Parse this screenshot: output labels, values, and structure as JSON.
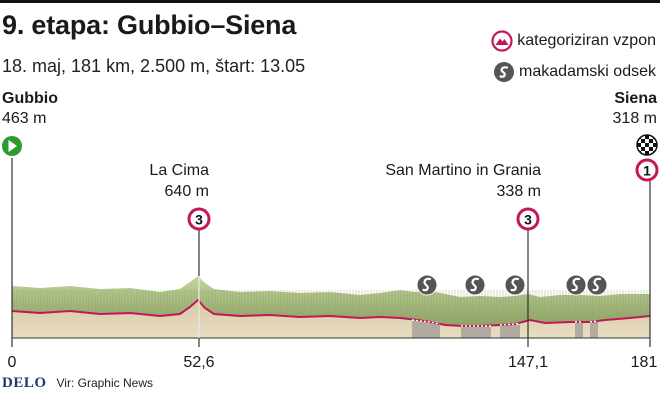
{
  "header": {
    "title": "9. etapa: Gubbio–Siena",
    "subtitle": "18. maj, 181 km, 2.500 m, štart: 13.05"
  },
  "legend": {
    "climb_label": "kategoriziran vzpon",
    "gravel_label": "makadamski odsek"
  },
  "start": {
    "name": "Gubbio",
    "altitude": "463 m",
    "km_label": "0"
  },
  "finish": {
    "name": "Siena",
    "altitude": "318 m",
    "km_label": "181",
    "category": "1"
  },
  "climbs": [
    {
      "name": "La Cima",
      "altitude": "640 m",
      "category": "3",
      "km_label": "52,6"
    },
    {
      "name": "San Martino in Grania",
      "altitude": "338 m",
      "category": "3",
      "km_label": "147,1"
    }
  ],
  "footer": {
    "brand": "DELO",
    "source": "Vir: Graphic News"
  },
  "colors": {
    "surface_fill": "#b5c98c",
    "side_fill": "#cfbf9a",
    "road_line": "#c2185b",
    "start_marker": "#2e9a35",
    "climb_marker": "#c2185b",
    "gravel_marker": "#555555"
  }
}
